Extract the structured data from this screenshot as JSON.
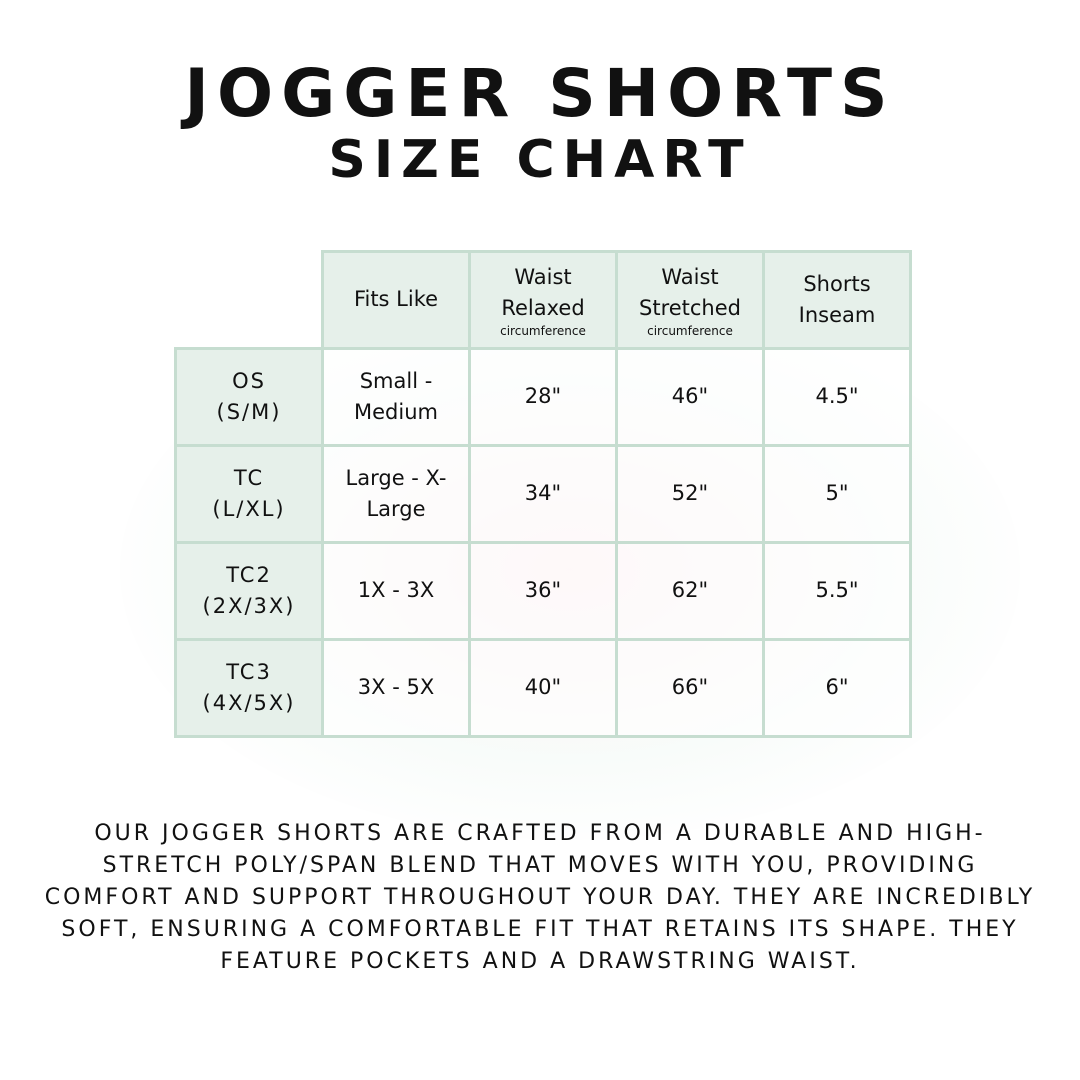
{
  "title": {
    "line1": "JOGGER SHORTS",
    "line2": "SIZE CHART"
  },
  "table": {
    "headers": [
      {
        "label": "Fits Like",
        "sub": ""
      },
      {
        "label": "Waist Relaxed",
        "sub": "circumference"
      },
      {
        "label": "Waist Stretched",
        "sub": "circumference"
      },
      {
        "label": "Shorts Inseam",
        "sub": ""
      }
    ],
    "rows": [
      {
        "size": "OS",
        "size_range": "(S/M)",
        "cells": [
          "Small - Medium",
          "28\"",
          "46\"",
          "4.5\""
        ]
      },
      {
        "size": "TC",
        "size_range": "(L/XL)",
        "cells": [
          "Large - X-Large",
          "34\"",
          "52\"",
          "5\""
        ]
      },
      {
        "size": "TC2",
        "size_range": "(2X/3X)",
        "cells": [
          "1X - 3X",
          "36\"",
          "62\"",
          "5.5\""
        ]
      },
      {
        "size": "TC3",
        "size_range": "(4X/5X)",
        "cells": [
          "3X - 5X",
          "40\"",
          "66\"",
          "6\""
        ]
      }
    ]
  },
  "description": "Our jogger shorts are crafted from a durable and high-stretch poly/span blend that moves with you, providing comfort and support throughout your day. They are incredibly soft, ensuring a comfortable fit that retains its shape. They feature pockets and a drawstring waist.",
  "colors": {
    "header_bg": "#e6f0ea",
    "border": "#c6ddd0"
  }
}
